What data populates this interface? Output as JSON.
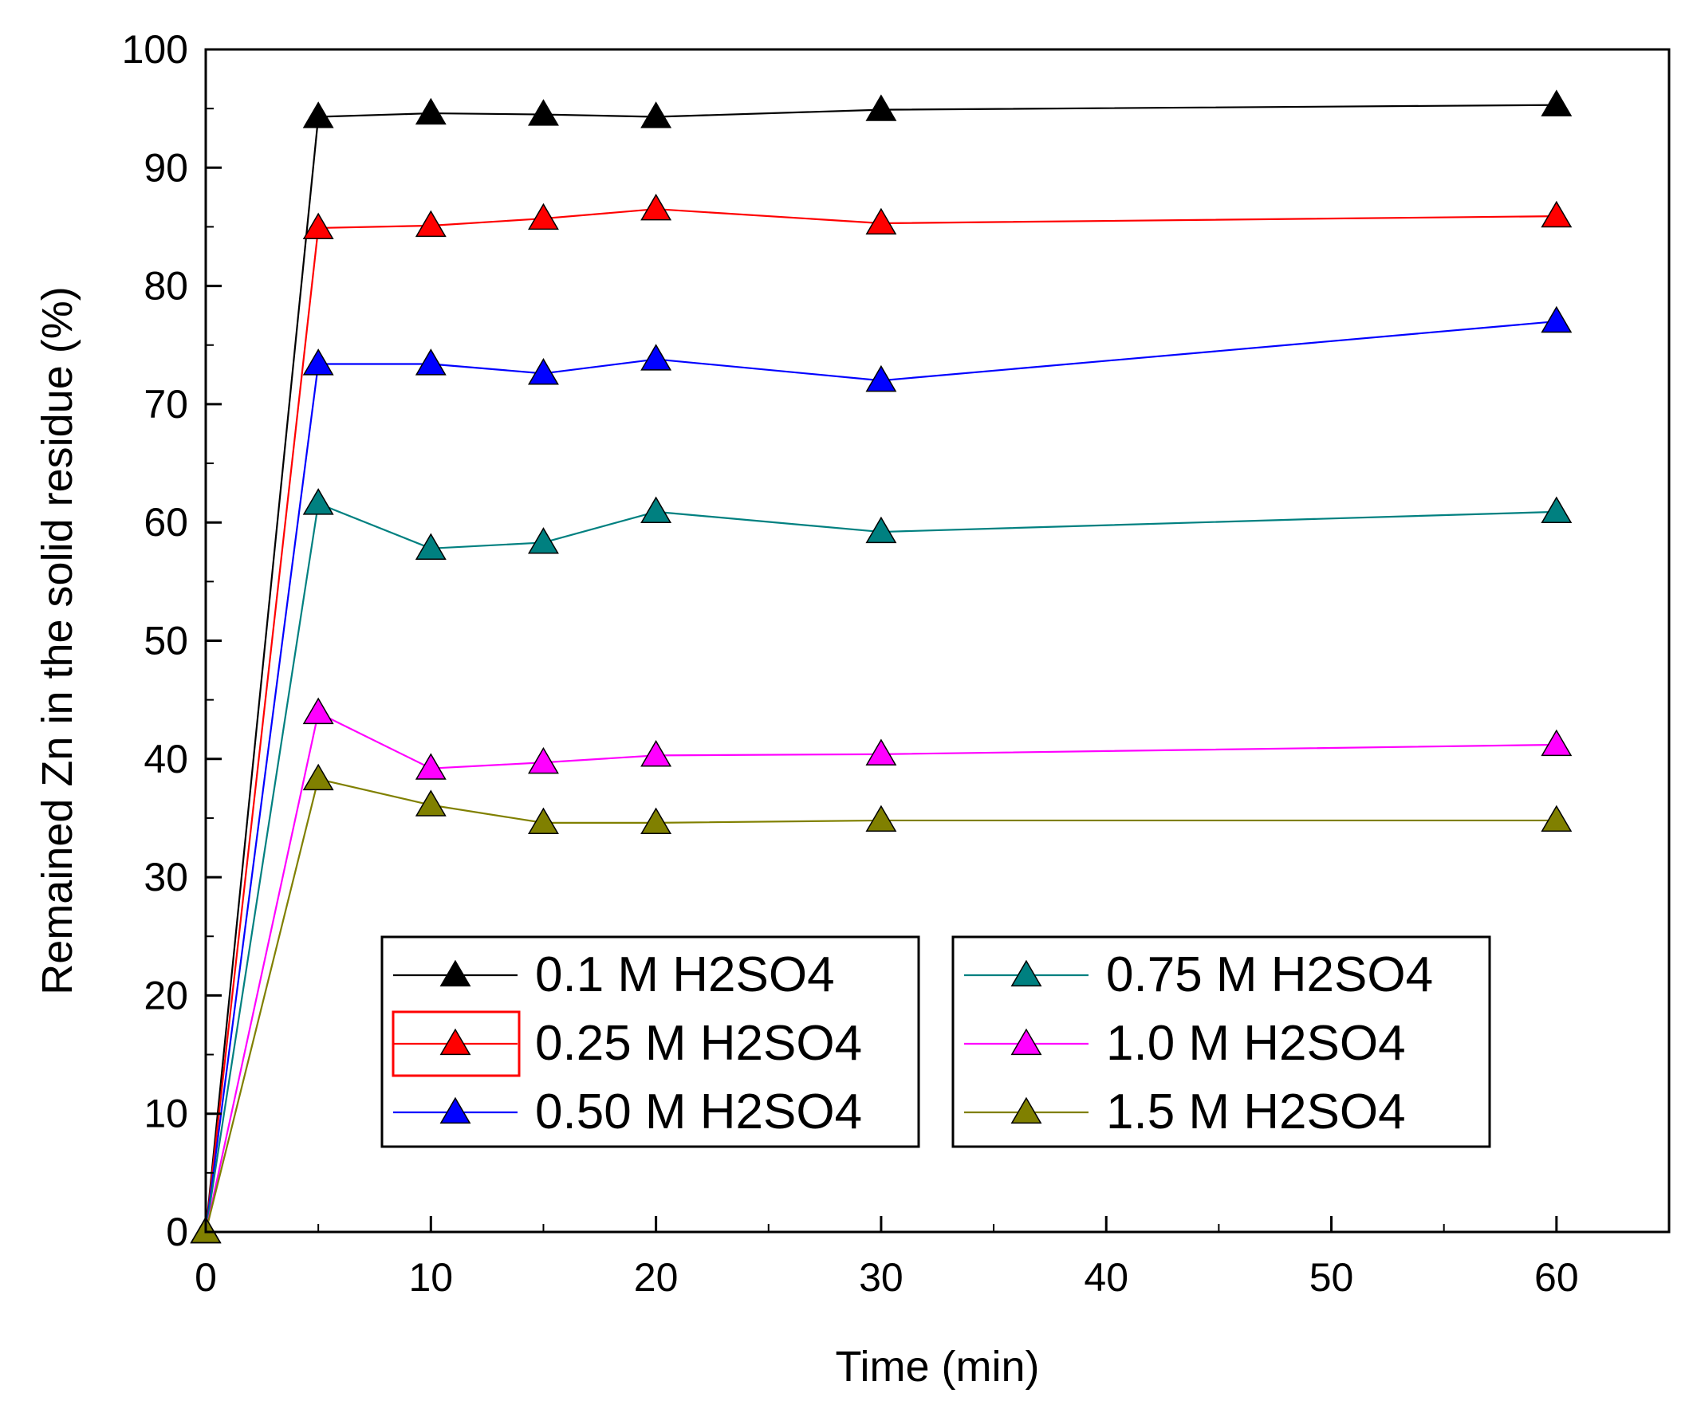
{
  "chart_data": {
    "type": "line",
    "title": "",
    "xlabel": "Time (min)",
    "ylabel": "Remained Zn in the solid residue (%)",
    "xlim": [
      0,
      65
    ],
    "ylim": [
      0,
      100
    ],
    "x_ticks": [
      0,
      10,
      20,
      30,
      40,
      50,
      60
    ],
    "y_ticks": [
      0,
      10,
      20,
      30,
      40,
      50,
      60,
      70,
      80,
      90,
      100
    ],
    "x_tick_labels": [
      "0",
      "10",
      "20",
      "30",
      "40",
      "50",
      "60"
    ],
    "y_tick_labels": [
      "0",
      "10",
      "20",
      "30",
      "40",
      "50",
      "60",
      "70",
      "80",
      "90",
      "100"
    ],
    "grid": false,
    "legend_placement": "bottom-center",
    "x": [
      0,
      5,
      10,
      15,
      20,
      30,
      60
    ],
    "series": [
      {
        "name": "0.1 M H2SO4",
        "color": "#000000",
        "marker": "triangle-up",
        "values": [
          0,
          94.3,
          94.6,
          94.5,
          94.3,
          94.9,
          95.3
        ]
      },
      {
        "name": "0.25 M H2SO4",
        "color": "#ff0000",
        "marker": "triangle-up",
        "values": [
          0,
          84.9,
          85.1,
          85.7,
          86.5,
          85.3,
          85.9
        ]
      },
      {
        "name": "0.50 M H2SO4",
        "color": "#0000ff",
        "marker": "triangle-up",
        "values": [
          0,
          73.4,
          73.4,
          72.6,
          73.8,
          72.0,
          77.0
        ]
      },
      {
        "name": "0.75 M H2SO4",
        "color": "#008080",
        "marker": "triangle-up",
        "values": [
          0,
          61.6,
          57.8,
          58.3,
          60.9,
          59.2,
          60.9
        ]
      },
      {
        "name": "1.0 M H2SO4",
        "color": "#ff00ff",
        "marker": "triangle-up",
        "values": [
          0,
          43.9,
          39.2,
          39.7,
          40.3,
          40.4,
          41.2
        ]
      },
      {
        "name": "1.5 M H2SO4",
        "color": "#808000",
        "marker": "triangle-up",
        "values": [
          0,
          38.3,
          36.1,
          34.6,
          34.6,
          34.8,
          34.8
        ]
      }
    ],
    "legend_layout": {
      "groups": [
        {
          "series_indices": [
            0,
            1,
            2
          ],
          "highlighted_index": 1
        },
        {
          "series_indices": [
            3,
            4,
            5
          ],
          "highlighted_index": null
        }
      ]
    }
  }
}
